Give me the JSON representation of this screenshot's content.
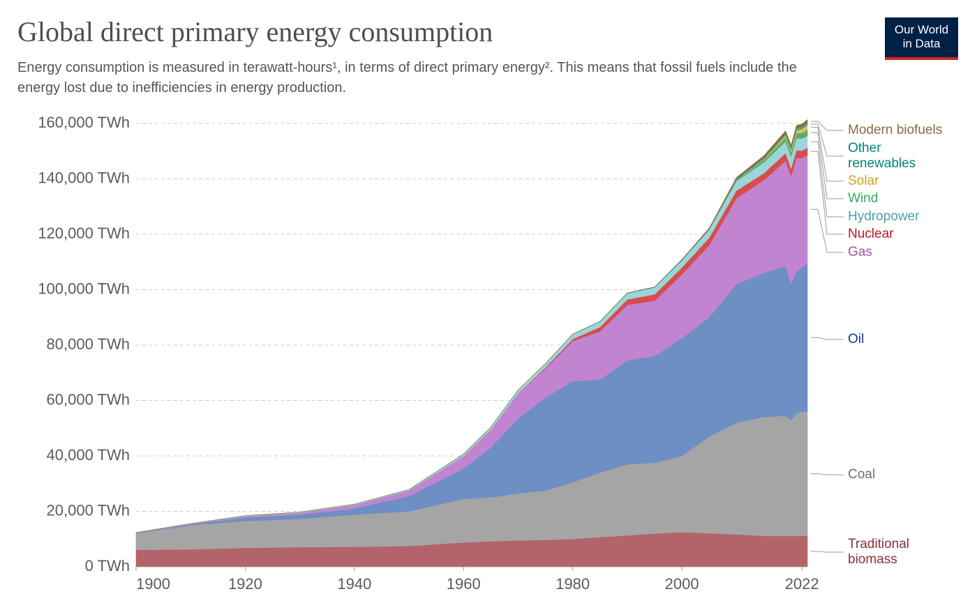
{
  "chart_data": {
    "type": "stacked_area",
    "title": "Global direct primary energy consumption",
    "subtitle": "Energy consumption is measured in terawatt-hours¹, in terms of direct primary energy². This means that fossil fuels include the energy lost due to inefficiencies in energy production.",
    "logo": [
      "Our World",
      "in Data"
    ],
    "x": [
      1900,
      1910,
      1920,
      1930,
      1940,
      1950,
      1960,
      1965,
      1970,
      1975,
      1980,
      1985,
      1990,
      1995,
      2000,
      2005,
      2010,
      2015,
      2019,
      2020,
      2021,
      2022,
      2023
    ],
    "xlim": [
      1900,
      2023
    ],
    "xticks": [
      1900,
      1920,
      1940,
      1960,
      1980,
      2000,
      2022
    ],
    "ylim": [
      0,
      160000
    ],
    "yticks": [
      {
        "value": 0,
        "label": "0 TWh"
      },
      {
        "value": 20000,
        "label": "20,000 TWh"
      },
      {
        "value": 40000,
        "label": "40,000 TWh"
      },
      {
        "value": 60000,
        "label": "60,000 TWh"
      },
      {
        "value": 80000,
        "label": "80,000 TWh"
      },
      {
        "value": 100000,
        "label": "100,000 TWh"
      },
      {
        "value": 120000,
        "label": "120,000 TWh"
      },
      {
        "value": 140000,
        "label": "140,000 TWh"
      },
      {
        "value": 160000,
        "label": "160,000 TWh"
      }
    ],
    "grid": true,
    "series": [
      {
        "name": "Traditional biomass",
        "color": "#b2646a",
        "label_color": "#883039",
        "values": [
          6100,
          6300,
          6800,
          7100,
          7200,
          7500,
          8800,
          9200,
          9500,
          9700,
          10000,
          10700,
          11300,
          12000,
          12500,
          12100,
          11700,
          11100,
          11100,
          11100,
          11100,
          11100,
          11100
        ]
      },
      {
        "name": "Coal",
        "color": "#a5a5a5",
        "label_color": "#6d6d6d",
        "values": [
          5900,
          8700,
          9700,
          10200,
          11600,
          12500,
          15700,
          15800,
          17000,
          17800,
          20500,
          23300,
          25700,
          25500,
          27500,
          34900,
          40300,
          42900,
          43400,
          41900,
          44400,
          44900,
          44900
        ]
      },
      {
        "name": "Oil",
        "color": "#6d8fc4",
        "label_color": "#18377f",
        "values": [
          200,
          300,
          1300,
          1500,
          2200,
          5500,
          11000,
          18000,
          27000,
          33500,
          36500,
          33500,
          37500,
          38500,
          42500,
          43000,
          50000,
          52000,
          54000,
          49000,
          51000,
          52000,
          53500
        ]
      },
      {
        "name": "Gas",
        "color": "#c084d1",
        "label_color": "#a2559c",
        "values": [
          100,
          200,
          400,
          700,
          1300,
          2000,
          4500,
          6500,
          9000,
          10500,
          14500,
          17500,
          20000,
          20000,
          23000,
          26000,
          31000,
          33500,
          38000,
          39000,
          41000,
          39500,
          39000
        ]
      },
      {
        "name": "Nuclear",
        "color": "#d84c4c",
        "label_color": "#c0152b",
        "values": [
          0,
          0,
          0,
          0,
          0,
          0,
          0,
          30,
          80,
          400,
          700,
          1500,
          2000,
          2300,
          2500,
          2750,
          2750,
          2500,
          2800,
          2700,
          2800,
          2680,
          2740
        ]
      },
      {
        "name": "Hydropower",
        "color": "#9ad5d8",
        "label_color": "#4c9fab",
        "values": [
          50,
          100,
          200,
          250,
          300,
          350,
          700,
          900,
          1200,
          1400,
          1700,
          2000,
          2200,
          2500,
          2600,
          2900,
          3400,
          3900,
          4200,
          4350,
          4300,
          4350,
          4250
        ]
      },
      {
        "name": "Wind",
        "color": "#5eab6e",
        "label_color": "#38aa5e",
        "values": [
          0,
          0,
          0,
          0,
          0,
          0,
          0,
          0,
          0,
          0,
          0,
          0,
          0,
          10,
          30,
          100,
          340,
          830,
          1420,
          1600,
          1850,
          2100,
          2300
        ]
      },
      {
        "name": "Solar",
        "color": "#e0c24d",
        "label_color": "#d2a317",
        "values": [
          0,
          0,
          0,
          0,
          0,
          0,
          0,
          0,
          0,
          0,
          0,
          0,
          0,
          0,
          0,
          5,
          30,
          260,
          700,
          850,
          1040,
          1300,
          1600
        ]
      },
      {
        "name": "Other renewables",
        "color": "#3fa8a3",
        "label_color": "#00847e",
        "values": [
          0,
          0,
          0,
          0,
          0,
          0,
          0,
          0,
          0,
          0,
          50,
          80,
          120,
          150,
          200,
          250,
          350,
          500,
          650,
          680,
          720,
          760,
          800
        ]
      },
      {
        "name": "Modern biofuels",
        "color": "#8e6d3f",
        "label_color": "#8c6a3f",
        "values": [
          0,
          0,
          0,
          0,
          0,
          0,
          0,
          0,
          0,
          0,
          0,
          0,
          0,
          0,
          100,
          200,
          600,
          800,
          1050,
          950,
          1050,
          1100,
          1150
        ]
      }
    ]
  }
}
